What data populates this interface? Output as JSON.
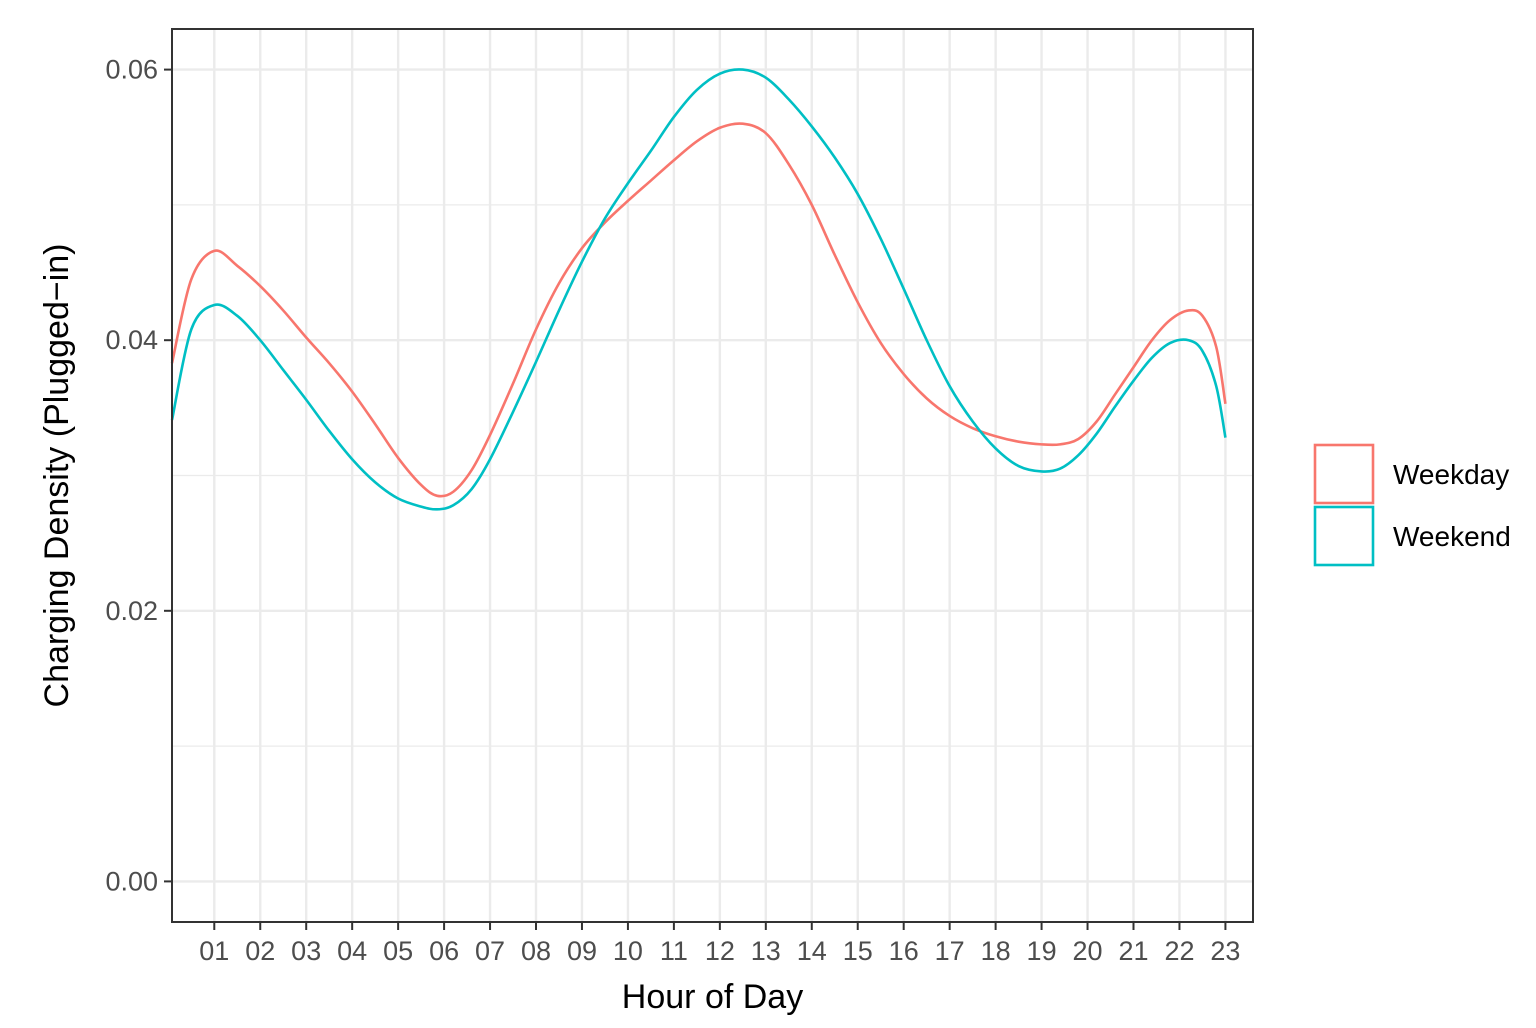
{
  "chart_data": {
    "type": "line",
    "title": "",
    "xlabel": "Hour of Day",
    "ylabel": "Charging Density (Plugged−in)",
    "categories": [
      "01",
      "02",
      "03",
      "04",
      "05",
      "06",
      "07",
      "08",
      "09",
      "10",
      "11",
      "12",
      "13",
      "14",
      "15",
      "16",
      "17",
      "18",
      "19",
      "20",
      "21",
      "22",
      "23"
    ],
    "xlim": [
      0.08,
      23.6
    ],
    "ylim": [
      -0.003,
      0.063
    ],
    "y_ticks": [
      0.0,
      0.02,
      0.04,
      0.06
    ],
    "y_tick_labels": [
      "0.00",
      "0.02",
      "0.04",
      "0.06"
    ],
    "grid": true,
    "legend_position": "right",
    "series": [
      {
        "name": "Weekday",
        "color": "#F8766D",
        "x": [
          0.08,
          0.5,
          1.0,
          1.5,
          2.0,
          2.5,
          3.0,
          3.5,
          4.0,
          4.5,
          5.0,
          5.5,
          5.85,
          6.2,
          6.6,
          7.0,
          7.5,
          8.0,
          8.5,
          9.0,
          9.5,
          10.0,
          10.5,
          11.0,
          11.5,
          12.0,
          12.5,
          13.0,
          13.5,
          14.0,
          14.5,
          15.0,
          15.5,
          16.0,
          16.5,
          17.0,
          17.5,
          18.0,
          18.5,
          19.0,
          19.4,
          19.8,
          20.2,
          20.6,
          21.0,
          21.4,
          21.8,
          22.2,
          22.5,
          22.8,
          23.0
        ],
        "y": [
          0.0383,
          0.0445,
          0.0466,
          0.0455,
          0.044,
          0.0422,
          0.0402,
          0.0383,
          0.0362,
          0.0338,
          0.0313,
          0.0293,
          0.0285,
          0.0288,
          0.0304,
          0.033,
          0.0368,
          0.0408,
          0.0442,
          0.0468,
          0.0487,
          0.0503,
          0.0518,
          0.0533,
          0.0547,
          0.0557,
          0.056,
          0.0553,
          0.053,
          0.05,
          0.0463,
          0.0428,
          0.0398,
          0.0375,
          0.0357,
          0.0344,
          0.0335,
          0.0329,
          0.0325,
          0.0323,
          0.0323,
          0.0327,
          0.034,
          0.036,
          0.038,
          0.04,
          0.0415,
          0.0422,
          0.0418,
          0.0395,
          0.0353
        ]
      },
      {
        "name": "Weekend",
        "color": "#00BFC4",
        "x": [
          0.08,
          0.5,
          1.0,
          1.5,
          2.0,
          2.5,
          3.0,
          3.5,
          4.0,
          4.5,
          5.0,
          5.5,
          5.85,
          6.2,
          6.6,
          7.0,
          7.5,
          8.0,
          8.5,
          9.0,
          9.5,
          10.0,
          10.5,
          11.0,
          11.5,
          12.0,
          12.5,
          13.0,
          13.5,
          14.0,
          14.5,
          15.0,
          15.5,
          16.0,
          16.5,
          17.0,
          17.5,
          18.0,
          18.5,
          19.0,
          19.4,
          19.8,
          20.2,
          20.6,
          21.0,
          21.4,
          21.8,
          22.2,
          22.5,
          22.8,
          23.0
        ],
        "y": [
          0.0341,
          0.0408,
          0.0426,
          0.0418,
          0.04,
          0.0378,
          0.0356,
          0.0333,
          0.0312,
          0.0295,
          0.0283,
          0.0277,
          0.0275,
          0.0278,
          0.029,
          0.0312,
          0.0347,
          0.0384,
          0.0422,
          0.0458,
          0.049,
          0.0516,
          0.054,
          0.0565,
          0.0585,
          0.0597,
          0.06,
          0.0594,
          0.0578,
          0.0558,
          0.0535,
          0.0508,
          0.0475,
          0.0438,
          0.04,
          0.0366,
          0.034,
          0.032,
          0.0307,
          0.0303,
          0.0305,
          0.0315,
          0.0331,
          0.0351,
          0.037,
          0.0387,
          0.0398,
          0.04,
          0.0392,
          0.0366,
          0.0328
        ]
      }
    ]
  }
}
